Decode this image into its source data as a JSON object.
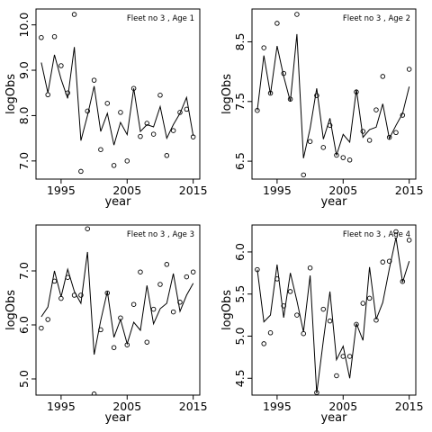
{
  "chart_data": [
    {
      "type": "scatter",
      "title": "Fleet no 3 , Age 1",
      "xlabel": "year",
      "ylabel": "logObs",
      "xlim": [
        1991.2,
        2016.0
      ],
      "ylim": [
        6.6,
        10.35
      ],
      "xticks": [
        1995,
        2005,
        2015
      ],
      "yticks": [
        7.0,
        8.0,
        9.0,
        10.0
      ],
      "yticks_labels": [
        "7.0",
        "8.0",
        "9.0",
        "10.0"
      ],
      "grid": false,
      "series": [
        {
          "kind": "points",
          "x": [
            1992,
            1993,
            1994,
            1995,
            1996,
            1997,
            1998,
            1999,
            2000,
            2001,
            2002,
            2003,
            2004,
            2005,
            2006,
            2007,
            2008,
            2009,
            2010,
            2011,
            2012,
            2013,
            2014,
            2015
          ],
          "y": [
            9.72,
            8.46,
            9.74,
            9.1,
            8.5,
            10.23,
            6.77,
            8.1,
            8.78,
            7.25,
            8.27,
            6.9,
            8.07,
            7.0,
            8.6,
            7.54,
            7.83,
            7.59,
            8.45,
            7.12,
            7.67,
            8.07,
            8.14,
            7.53
          ]
        },
        {
          "kind": "line",
          "x": [
            1992,
            1993,
            1994,
            1995,
            1996,
            1997,
            1998,
            1999,
            2000,
            2001,
            2002,
            2003,
            2004,
            2005,
            2006,
            2007,
            2008,
            2009,
            2010,
            2011,
            2012,
            2013,
            2014,
            2015
          ],
          "y": [
            9.17,
            8.5,
            9.34,
            8.8,
            8.38,
            9.51,
            7.45,
            8.0,
            8.65,
            7.65,
            8.05,
            7.35,
            7.85,
            7.58,
            8.6,
            7.65,
            7.8,
            7.75,
            8.2,
            7.5,
            7.8,
            8.05,
            8.4,
            7.55
          ]
        }
      ]
    },
    {
      "type": "scatter",
      "title": "Fleet no 3 , Age 2",
      "xlabel": "year",
      "ylabel": "logObs",
      "xlim": [
        1991.2,
        2016.0
      ],
      "ylim": [
        6.2,
        9.05
      ],
      "xticks": [
        1995,
        2005,
        2015
      ],
      "yticks": [
        6.5,
        7.5,
        8.5
      ],
      "yticks_labels": [
        "6.5",
        "7.5",
        "8.5"
      ],
      "grid": false,
      "series": [
        {
          "kind": "points",
          "x": [
            1992,
            1993,
            1994,
            1995,
            1996,
            1997,
            1998,
            1999,
            2000,
            2001,
            2002,
            2003,
            2004,
            2005,
            2006,
            2007,
            2008,
            2009,
            2010,
            2011,
            2012,
            2013,
            2014,
            2015
          ],
          "y": [
            7.35,
            8.4,
            7.64,
            8.81,
            7.97,
            7.54,
            8.96,
            6.27,
            6.83,
            7.6,
            6.73,
            7.1,
            6.6,
            6.56,
            6.52,
            7.66,
            7.0,
            6.85,
            7.36,
            7.92,
            6.9,
            6.98,
            7.27,
            8.04
          ]
        },
        {
          "kind": "line",
          "x": [
            1992,
            1993,
            1994,
            1995,
            1996,
            1997,
            1998,
            1999,
            2000,
            2001,
            2002,
            2003,
            2004,
            2005,
            2006,
            2007,
            2008,
            2009,
            2010,
            2011,
            2012,
            2013,
            2014,
            2015
          ],
          "y": [
            7.35,
            8.27,
            7.62,
            8.43,
            7.92,
            7.5,
            8.63,
            6.55,
            7.05,
            7.72,
            6.87,
            7.22,
            6.6,
            6.95,
            6.82,
            7.7,
            6.9,
            7.03,
            7.07,
            7.46,
            6.88,
            7.1,
            7.3,
            7.75
          ]
        }
      ]
    },
    {
      "type": "scatter",
      "title": "Fleet no 3 , Age 3",
      "xlabel": "year",
      "ylabel": "logObs",
      "xlim": [
        1991.2,
        2016.0
      ],
      "ylim": [
        4.7,
        7.85
      ],
      "xticks": [
        1995,
        2005,
        2015
      ],
      "yticks": [
        5.0,
        6.0,
        7.0
      ],
      "yticks_labels": [
        "5.0",
        "6.0",
        "7.0"
      ],
      "grid": false,
      "series": [
        {
          "kind": "points",
          "x": [
            1992,
            1993,
            1994,
            1995,
            1996,
            1997,
            1998,
            1999,
            2000,
            2001,
            2002,
            2003,
            2004,
            2005,
            2006,
            2007,
            2008,
            2009,
            2010,
            2011,
            2012,
            2013,
            2014,
            2015
          ],
          "y": [
            5.94,
            6.1,
            6.81,
            6.49,
            6.88,
            6.55,
            6.55,
            7.78,
            4.72,
            5.91,
            6.59,
            5.58,
            6.13,
            5.63,
            6.38,
            6.98,
            5.68,
            6.29,
            6.75,
            7.12,
            6.24,
            6.42,
            6.89,
            6.98
          ]
        },
        {
          "kind": "line",
          "x": [
            1992,
            1993,
            1994,
            1995,
            1996,
            1997,
            1998,
            1999,
            2000,
            2001,
            2002,
            2003,
            2004,
            2005,
            2006,
            2007,
            2008,
            2009,
            2010,
            2011,
            2012,
            2013,
            2014,
            2015
          ],
          "y": [
            6.15,
            6.33,
            7.0,
            6.52,
            7.03,
            6.62,
            6.4,
            7.35,
            5.45,
            6.08,
            6.62,
            5.77,
            6.1,
            5.65,
            6.05,
            5.9,
            6.73,
            6.02,
            6.3,
            6.4,
            6.95,
            6.25,
            6.55,
            6.77
          ]
        }
      ]
    },
    {
      "type": "scatter",
      "title": "Fleet no 3 , Age 4",
      "xlabel": "year",
      "ylabel": "logObs",
      "xlim": [
        1991.2,
        2016.0
      ],
      "ylim": [
        4.3,
        6.32
      ],
      "xticks": [
        1995,
        2005,
        2015
      ],
      "yticks": [
        4.5,
        5.0,
        5.5,
        6.0
      ],
      "yticks_labels": [
        "4.5",
        "5.0",
        "5.5",
        "6.0"
      ],
      "grid": false,
      "series": [
        {
          "kind": "points",
          "x": [
            1992,
            1993,
            1994,
            1995,
            1996,
            1997,
            1998,
            1999,
            2000,
            2001,
            2002,
            2003,
            2004,
            2005,
            2006,
            2007,
            2008,
            2009,
            2010,
            2011,
            2012,
            2013,
            2014,
            2015
          ],
          "y": [
            5.79,
            4.91,
            5.04,
            5.68,
            5.36,
            5.53,
            5.25,
            5.03,
            5.81,
            4.33,
            5.32,
            5.18,
            4.53,
            4.76,
            4.76,
            5.14,
            5.39,
            5.45,
            5.19,
            5.88,
            5.89,
            6.24,
            5.65,
            6.14
          ]
        },
        {
          "kind": "line",
          "x": [
            1992,
            1993,
            1994,
            1995,
            1996,
            1997,
            1998,
            1999,
            2000,
            2001,
            2002,
            2003,
            2004,
            2005,
            2006,
            2007,
            2008,
            2009,
            2010,
            2011,
            2012,
            2013,
            2014,
            2015
          ],
          "y": [
            5.79,
            5.17,
            5.25,
            5.85,
            5.22,
            5.75,
            5.42,
            5.05,
            5.72,
            4.32,
            4.95,
            5.53,
            4.72,
            4.88,
            4.5,
            5.15,
            4.95,
            5.82,
            5.2,
            5.4,
            5.8,
            6.17,
            5.64,
            5.89
          ]
        }
      ]
    }
  ]
}
